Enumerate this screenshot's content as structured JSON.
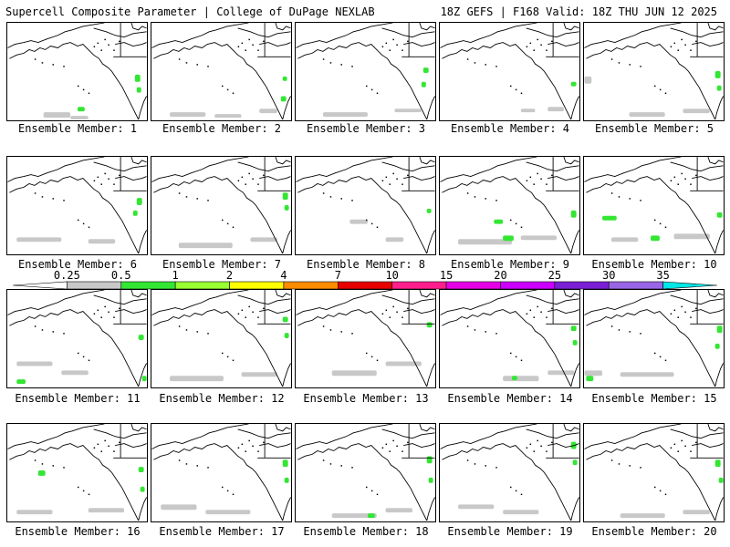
{
  "header": {
    "left": "Supercell Composite Parameter | College of DuPage NEXLAB",
    "right": "18Z GEFS | F168 Valid: 18Z THU JUN 12 2025"
  },
  "colors": {
    "gray": "#c8c8c8",
    "green": "#33e633",
    "coast": "#000000"
  },
  "members": [
    {
      "label": "Ensemble Member: 1"
    },
    {
      "label": "Ensemble Member: 2"
    },
    {
      "label": "Ensemble Member: 3"
    },
    {
      "label": "Ensemble Member: 4"
    },
    {
      "label": "Ensemble Member: 5"
    },
    {
      "label": "Ensemble Member: 6"
    },
    {
      "label": "Ensemble Member: 7"
    },
    {
      "label": "Ensemble Member: 8"
    },
    {
      "label": "Ensemble Member: 9"
    },
    {
      "label": "Ensemble Member: 10"
    },
    {
      "label": "Ensemble Member: 11"
    },
    {
      "label": "Ensemble Member: 12"
    },
    {
      "label": "Ensemble Member: 13"
    },
    {
      "label": "Ensemble Member: 14"
    },
    {
      "label": "Ensemble Member: 15"
    },
    {
      "label": "Ensemble Member: 16"
    },
    {
      "label": "Ensemble Member: 17"
    },
    {
      "label": "Ensemble Member: 18"
    },
    {
      "label": "Ensemble Member: 19"
    },
    {
      "label": "Ensemble Member: 20"
    }
  ],
  "colorbar": {
    "levels": [
      "0.25",
      "0.5",
      "1",
      "2",
      "4",
      "7",
      "10",
      "15",
      "20",
      "25",
      "30",
      "35"
    ],
    "colors": [
      "#ffffff",
      "#c8c8c8",
      "#33e633",
      "#99ff33",
      "#ffff00",
      "#ff8c00",
      "#e60000",
      "#ff1f8c",
      "#e600e6",
      "#cc00ff",
      "#7a1fd6",
      "#9966e6",
      "#00e6e6"
    ]
  }
}
